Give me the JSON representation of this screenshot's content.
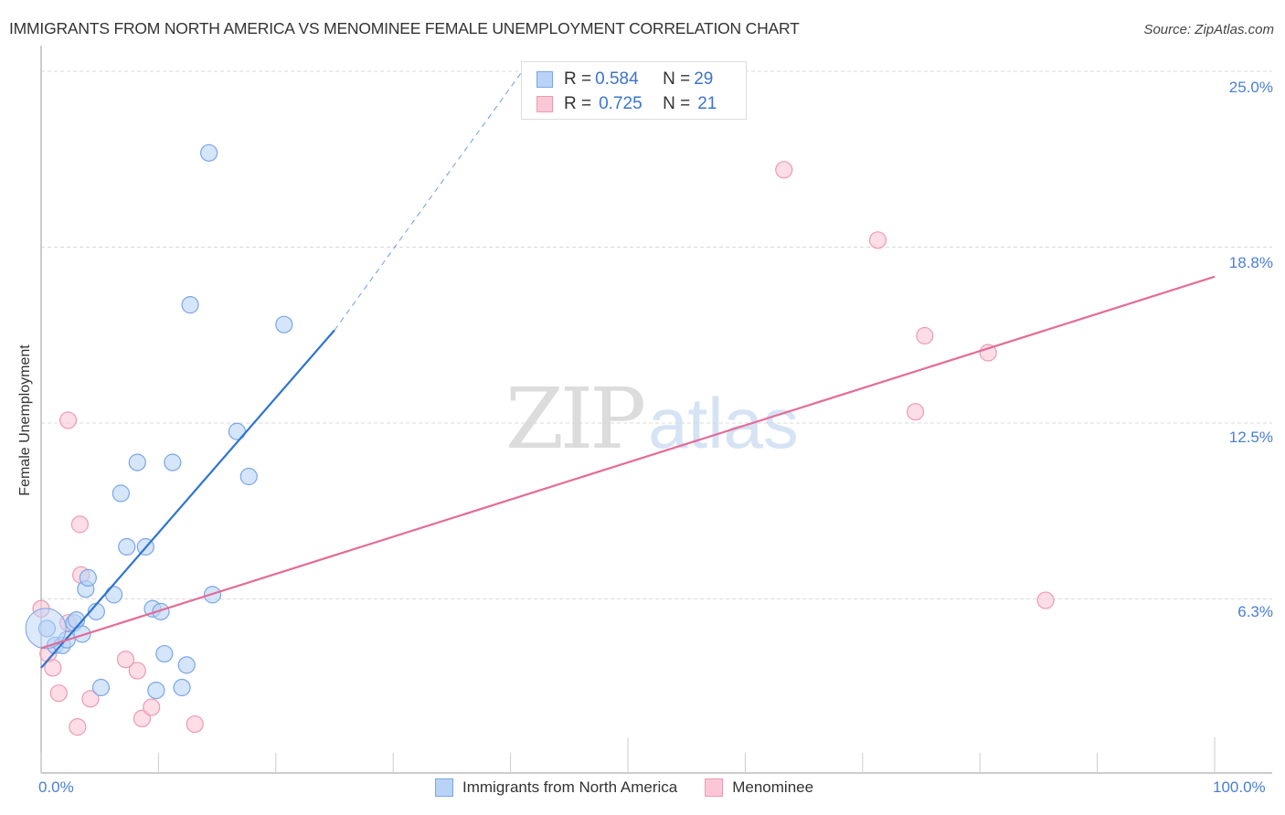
{
  "header": {
    "title": "IMMIGRANTS FROM NORTH AMERICA VS MENOMINEE FEMALE UNEMPLOYMENT CORRELATION CHART",
    "source": "Source: ZipAtlas.com"
  },
  "legend_top": {
    "rows": [
      {
        "r_label": "R = ",
        "r_value": "0.584",
        "n_label": "N = ",
        "n_value": "29",
        "color": "#b9d3f7"
      },
      {
        "r_label": "R = ",
        "r_value": "0.725",
        "n_label": "N = ",
        "n_value": "21",
        "color": "#fbc7d6"
      }
    ]
  },
  "legend_bottom": {
    "items": [
      {
        "label": "Immigrants from North America",
        "color": "#b9d3f7"
      },
      {
        "label": "Menominee",
        "color": "#fbc7d6"
      }
    ]
  },
  "watermark": {
    "zip": "ZIP",
    "atlas": "atlas"
  },
  "axes": {
    "ylabel": "Female Unemployment",
    "yticks": [
      "25.0%",
      "18.8%",
      "12.5%",
      "6.3%"
    ],
    "xticks": [
      "0.0%",
      "100.0%"
    ]
  },
  "colors": {
    "blue_fill": "#b9d3f7",
    "blue_stroke": "#7aa6e6",
    "blue_line": "#2f74d0",
    "pink_fill": "#fbc7d6",
    "pink_stroke": "#ee9ab4",
    "pink_line": "#e56b96",
    "tick_label": "#4a7fd4"
  },
  "chart_data": {
    "type": "scatter",
    "title": "IMMIGRANTS FROM NORTH AMERICA VS MENOMINEE FEMALE UNEMPLOYMENT CORRELATION CHART",
    "xlabel": "",
    "ylabel": "Female Unemployment",
    "xlim": [
      0,
      100
    ],
    "ylim": [
      0,
      25
    ],
    "x_tick_labels": [
      "0.0%",
      "100.0%"
    ],
    "y_tick_labels": [
      "6.3%",
      "12.5%",
      "18.8%",
      "25.0%"
    ],
    "grid": "horizontal dashed",
    "legend_position": "bottom",
    "series": [
      {
        "name": "Immigrants from North America",
        "R": 0.584,
        "N": 29,
        "color": "#b9d3f7",
        "points": [
          [
            0.5,
            5.2
          ],
          [
            1.2,
            4.6
          ],
          [
            1.8,
            4.6
          ],
          [
            2.2,
            4.8
          ],
          [
            2.8,
            5.4
          ],
          [
            3.0,
            5.5
          ],
          [
            3.5,
            5.0
          ],
          [
            3.8,
            6.6
          ],
          [
            4.0,
            7.0
          ],
          [
            4.7,
            5.8
          ],
          [
            5.1,
            3.1
          ],
          [
            6.2,
            6.4
          ],
          [
            6.8,
            10.0
          ],
          [
            7.3,
            8.1
          ],
          [
            8.2,
            11.1
          ],
          [
            8.9,
            8.1
          ],
          [
            9.5,
            5.9
          ],
          [
            9.8,
            3.0
          ],
          [
            10.2,
            5.8
          ],
          [
            10.5,
            4.3
          ],
          [
            11.2,
            11.1
          ],
          [
            12.0,
            3.1
          ],
          [
            12.4,
            3.9
          ],
          [
            14.3,
            22.1
          ],
          [
            14.6,
            6.4
          ],
          [
            12.7,
            16.7
          ],
          [
            16.7,
            12.2
          ],
          [
            17.7,
            10.6
          ],
          [
            20.7,
            16.0
          ]
        ],
        "trendline": {
          "x": [
            0,
            25
          ],
          "y": [
            3.8,
            15.8
          ],
          "dashed_extension_to": [
            41,
            25.0
          ]
        }
      },
      {
        "name": "Menominee",
        "R": 0.725,
        "N": 21,
        "color": "#fbc7d6",
        "points": [
          [
            0.0,
            5.9
          ],
          [
            0.6,
            4.3
          ],
          [
            1.0,
            3.8
          ],
          [
            1.5,
            2.9
          ],
          [
            2.3,
            12.6
          ],
          [
            2.3,
            5.4
          ],
          [
            3.1,
            1.7
          ],
          [
            3.3,
            8.9
          ],
          [
            3.4,
            7.1
          ],
          [
            4.2,
            2.7
          ],
          [
            7.2,
            4.1
          ],
          [
            8.2,
            3.7
          ],
          [
            8.6,
            2.0
          ],
          [
            9.4,
            2.4
          ],
          [
            13.1,
            1.8
          ],
          [
            63.3,
            21.5
          ],
          [
            71.3,
            19.0
          ],
          [
            74.5,
            12.9
          ],
          [
            75.3,
            15.6
          ],
          [
            80.7,
            15.0
          ],
          [
            85.6,
            6.2
          ]
        ],
        "trendline": {
          "x": [
            0,
            100
          ],
          "y": [
            4.5,
            17.7
          ]
        }
      }
    ]
  }
}
